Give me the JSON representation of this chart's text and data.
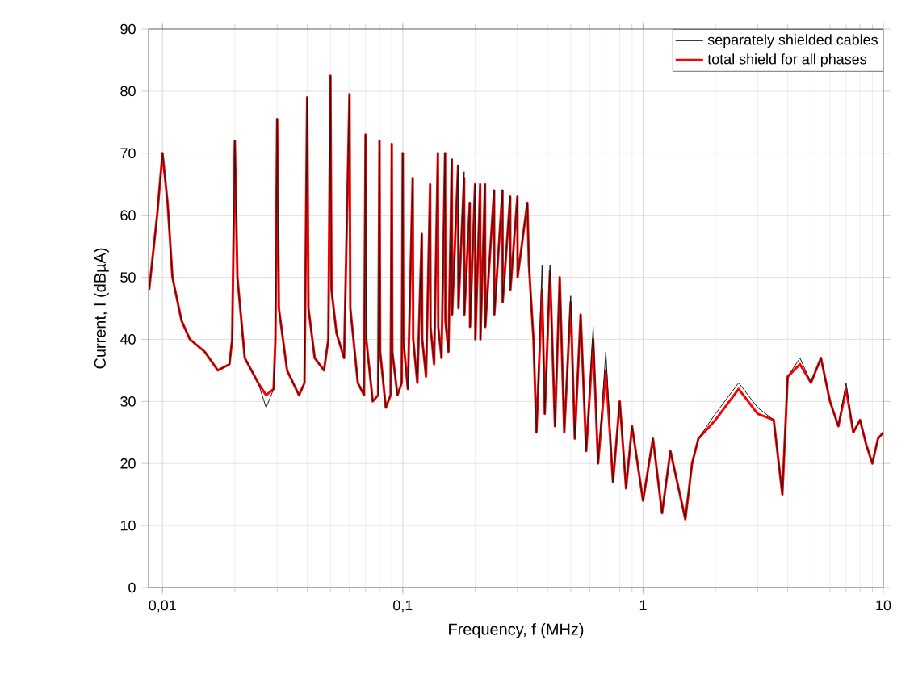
{
  "chart_data": {
    "type": "line",
    "xlabel": "Frequency, f (MHz)",
    "ylabel": "Current, I (dBµA)",
    "log": "x",
    "grid": true,
    "legend": "top right",
    "xlim": [
      0.00875,
      10
    ],
    "ylim": [
      0,
      90
    ],
    "xticks": [
      {
        "value": 0.01,
        "label": "0,01"
      },
      {
        "value": 0.1,
        "label": "0,1"
      },
      1,
      10
    ],
    "yticks": [
      0,
      10,
      20,
      30,
      40,
      50,
      60,
      70,
      80,
      90
    ],
    "x": [
      0.0088,
      0.0095,
      0.01,
      0.0105,
      0.011,
      0.012,
      0.013,
      0.015,
      0.017,
      0.019,
      0.0195,
      0.02,
      0.0205,
      0.022,
      0.025,
      0.027,
      0.029,
      0.0295,
      0.03,
      0.0305,
      0.033,
      0.037,
      0.039,
      0.04,
      0.0405,
      0.043,
      0.047,
      0.049,
      0.05,
      0.0505,
      0.053,
      0.057,
      0.06,
      0.0605,
      0.065,
      0.069,
      0.07,
      0.0705,
      0.075,
      0.079,
      0.08,
      0.0805,
      0.085,
      0.089,
      0.09,
      0.0905,
      0.095,
      0.099,
      0.1,
      0.1005,
      0.105,
      0.11,
      0.1105,
      0.115,
      0.12,
      0.1205,
      0.125,
      0.13,
      0.1305,
      0.135,
      0.14,
      0.1405,
      0.145,
      0.15,
      0.1505,
      0.155,
      0.16,
      0.1605,
      0.17,
      0.1705,
      0.18,
      0.1805,
      0.19,
      0.1905,
      0.2,
      0.2005,
      0.21,
      0.2105,
      0.22,
      0.2205,
      0.24,
      0.2405,
      0.26,
      0.2605,
      0.28,
      0.2805,
      0.3,
      0.3005,
      0.33,
      0.335,
      0.35,
      0.36,
      0.38,
      0.39,
      0.41,
      0.43,
      0.45,
      0.47,
      0.5,
      0.52,
      0.55,
      0.58,
      0.62,
      0.65,
      0.7,
      0.75,
      0.8,
      0.85,
      0.9,
      1.0,
      1.1,
      1.2,
      1.3,
      1.5,
      1.6,
      1.7,
      2.0,
      2.5,
      3.0,
      3.5,
      3.8,
      4.0,
      4.5,
      5.0,
      5.5,
      6.0,
      6.5,
      7.0,
      7.5,
      8.0,
      8.5,
      9.0,
      9.5,
      10
    ],
    "series": [
      {
        "name": "separately shielded cables",
        "color": "#1a1a1a",
        "values": [
          48,
          60,
          70,
          62,
          50,
          43,
          40,
          38,
          35,
          36,
          40,
          72,
          50,
          37,
          33,
          29,
          32,
          40,
          75.5,
          45,
          35,
          31,
          33,
          79,
          45,
          37,
          35,
          40,
          82.5,
          48,
          41,
          37,
          79.5,
          45,
          33,
          31,
          73,
          40,
          30,
          31,
          72,
          38,
          29,
          31,
          71.5,
          38,
          31,
          33,
          70,
          40,
          32,
          66,
          40,
          33,
          57,
          40,
          34,
          65,
          42,
          36,
          70,
          42,
          37,
          70,
          43,
          38,
          69,
          44,
          68,
          45,
          67,
          44,
          62,
          42,
          65,
          40,
          65,
          40,
          65,
          42,
          64,
          44,
          64,
          46,
          63,
          48,
          63,
          50,
          62,
          52,
          40,
          25,
          52,
          28,
          52,
          26,
          50,
          25,
          47,
          24,
          44,
          22,
          42,
          20,
          38,
          17,
          30,
          16,
          26,
          14,
          24,
          12,
          22,
          11,
          20,
          24,
          28,
          33,
          29,
          27,
          15,
          34,
          37,
          33,
          37,
          30,
          26,
          33,
          25,
          27,
          23,
          20,
          24,
          25
        ]
      },
      {
        "name": "total shield for all phases",
        "color": "#ff0000",
        "values": [
          48,
          60,
          70,
          62,
          50,
          43,
          40,
          38,
          35,
          36,
          40,
          72,
          50,
          37,
          33,
          31,
          32,
          40,
          75.5,
          45,
          35,
          31,
          33,
          79,
          45,
          37,
          35,
          40,
          82.5,
          48,
          41,
          37,
          79.5,
          45,
          33,
          31,
          73,
          40,
          30,
          31,
          72,
          38,
          29,
          31,
          71.5,
          38,
          31,
          33,
          70,
          40,
          32,
          66,
          40,
          33,
          57,
          40,
          34,
          65,
          42,
          36,
          70,
          42,
          37,
          70,
          43,
          38,
          69,
          44,
          68,
          45,
          66,
          44,
          62,
          42,
          65,
          40,
          65,
          40,
          65,
          42,
          64,
          44,
          64,
          46,
          63,
          48,
          63,
          50,
          62,
          52,
          40,
          25,
          48,
          28,
          51,
          26,
          50,
          25,
          46,
          24,
          44,
          22,
          40,
          20,
          35,
          17,
          30,
          16,
          26,
          14,
          24,
          12,
          22,
          11,
          20,
          24,
          27,
          32,
          28,
          27,
          15,
          34,
          36,
          33,
          37,
          30,
          26,
          32,
          25,
          27,
          23,
          20,
          24,
          25
        ]
      }
    ]
  }
}
